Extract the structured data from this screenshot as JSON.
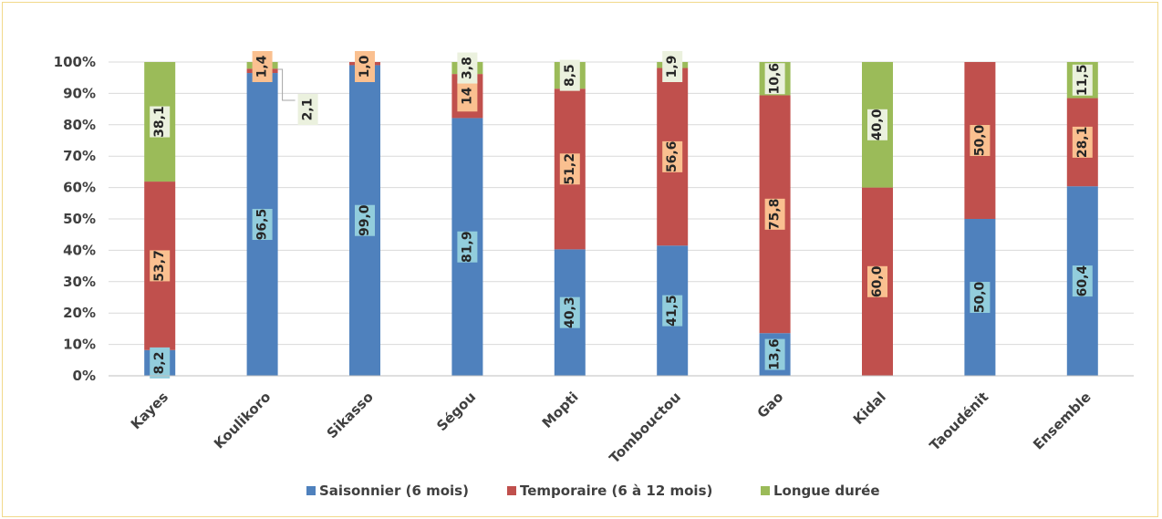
{
  "chart_data": {
    "type": "bar",
    "stacked": true,
    "percent_stacked": true,
    "categories": [
      "Kayes",
      "Koulikoro",
      "Sikasso",
      "Ségou",
      "Mopti",
      "Tombouctou",
      "Gao",
      "Kidal",
      "Taoudénit",
      "Ensemble"
    ],
    "series": [
      {
        "name": "Saisonnier (6 mois)",
        "color": "#4f81bd",
        "values": [
          8.2,
          96.5,
          99.0,
          81.9,
          40.3,
          41.5,
          13.6,
          0.0,
          50.0,
          60.4
        ],
        "labels": [
          "8,2",
          "96,5",
          "99,0",
          "81,9",
          "40,3",
          "41,5",
          "13,6",
          "",
          "50,0",
          "60,4"
        ]
      },
      {
        "name": "Temporaire (6 à 12 mois)",
        "color": "#c0504d",
        "values": [
          53.7,
          1.4,
          1.0,
          14.0,
          51.2,
          56.6,
          75.8,
          60.0,
          50.0,
          28.1
        ],
        "labels": [
          "53,7",
          "1,4",
          "1,0",
          "14",
          "51,2",
          "56,6",
          "75,8",
          "60,0",
          "50,0",
          "28,1"
        ]
      },
      {
        "name": "Longue durée",
        "color": "#9bbb59",
        "values": [
          38.1,
          2.1,
          0.0,
          3.8,
          8.5,
          1.9,
          10.6,
          40.0,
          0.0,
          11.5
        ],
        "labels": [
          "38,1",
          "2,1",
          "",
          "3,8",
          "8,5",
          "1,9",
          "10,6",
          "40,0",
          "",
          "11,5"
        ]
      }
    ],
    "yticks": [
      "0%",
      "10%",
      "20%",
      "30%",
      "40%",
      "50%",
      "60%",
      "70%",
      "80%",
      "90%",
      "100%"
    ],
    "ylim": [
      0,
      100
    ],
    "grid": true,
    "legend": "bottom",
    "label_box_colors": [
      "#92cddc",
      "#fac090",
      "#ebf1de"
    ]
  }
}
